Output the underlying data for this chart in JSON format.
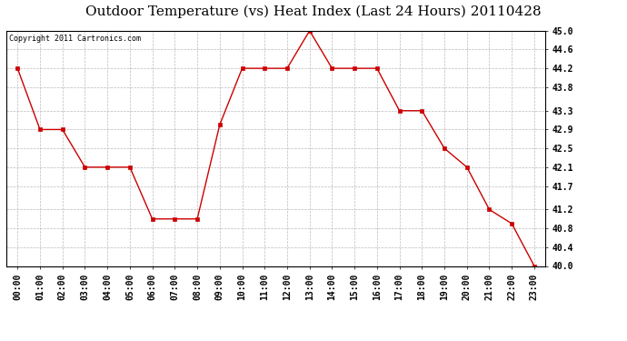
{
  "title": "Outdoor Temperature (vs) Heat Index (Last 24 Hours) 20110428",
  "copyright_text": "Copyright 2011 Cartronics.com",
  "x_labels": [
    "00:00",
    "01:00",
    "02:00",
    "03:00",
    "04:00",
    "05:00",
    "06:00",
    "07:00",
    "08:00",
    "09:00",
    "10:00",
    "11:00",
    "12:00",
    "13:00",
    "14:00",
    "15:00",
    "16:00",
    "17:00",
    "18:00",
    "19:00",
    "20:00",
    "21:00",
    "22:00",
    "23:00"
  ],
  "y_values": [
    44.2,
    42.9,
    42.9,
    42.1,
    42.1,
    42.1,
    41.0,
    41.0,
    41.0,
    43.0,
    44.2,
    44.2,
    44.2,
    45.0,
    44.2,
    44.2,
    44.2,
    43.3,
    43.3,
    42.5,
    42.1,
    41.2,
    40.9,
    40.0
  ],
  "line_color": "#cc0000",
  "marker_color": "#cc0000",
  "bg_color": "#ffffff",
  "plot_bg_color": "#ffffff",
  "grid_color": "#bbbbbb",
  "ylim_min": 40.0,
  "ylim_max": 45.0,
  "yticks": [
    40.0,
    40.4,
    40.8,
    41.2,
    41.7,
    42.1,
    42.5,
    42.9,
    43.3,
    43.8,
    44.2,
    44.6,
    45.0
  ],
  "title_fontsize": 11,
  "tick_fontsize": 7,
  "copyright_fontsize": 6
}
